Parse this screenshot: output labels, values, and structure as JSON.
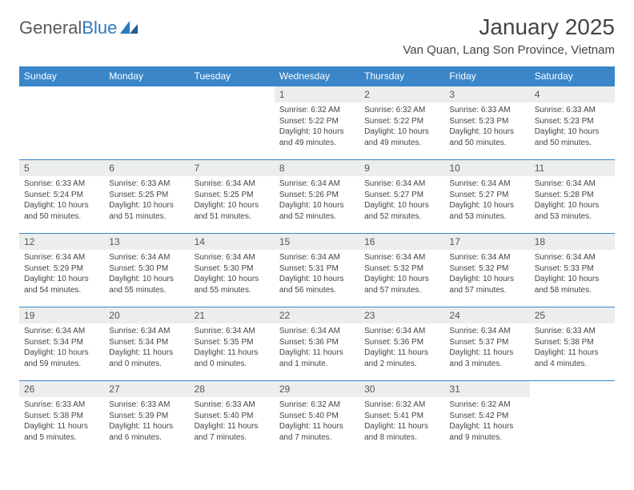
{
  "brand": {
    "part1": "General",
    "part2": "Blue"
  },
  "title": "January 2025",
  "location": "Van Quan, Lang Son Province, Vietnam",
  "colors": {
    "header_bg": "#3a86c8",
    "header_text": "#ffffff",
    "daynum_bg": "#eceded",
    "border": "#3a86c8",
    "text": "#444444",
    "brand_gray": "#5a5a5a",
    "brand_blue": "#2b7bbf"
  },
  "weekdays": [
    "Sunday",
    "Monday",
    "Tuesday",
    "Wednesday",
    "Thursday",
    "Friday",
    "Saturday"
  ],
  "weeks": [
    [
      null,
      null,
      null,
      {
        "n": "1",
        "sr": "6:32 AM",
        "ss": "5:22 PM",
        "dl": "10 hours and 49 minutes."
      },
      {
        "n": "2",
        "sr": "6:32 AM",
        "ss": "5:22 PM",
        "dl": "10 hours and 49 minutes."
      },
      {
        "n": "3",
        "sr": "6:33 AM",
        "ss": "5:23 PM",
        "dl": "10 hours and 50 minutes."
      },
      {
        "n": "4",
        "sr": "6:33 AM",
        "ss": "5:23 PM",
        "dl": "10 hours and 50 minutes."
      }
    ],
    [
      {
        "n": "5",
        "sr": "6:33 AM",
        "ss": "5:24 PM",
        "dl": "10 hours and 50 minutes."
      },
      {
        "n": "6",
        "sr": "6:33 AM",
        "ss": "5:25 PM",
        "dl": "10 hours and 51 minutes."
      },
      {
        "n": "7",
        "sr": "6:34 AM",
        "ss": "5:25 PM",
        "dl": "10 hours and 51 minutes."
      },
      {
        "n": "8",
        "sr": "6:34 AM",
        "ss": "5:26 PM",
        "dl": "10 hours and 52 minutes."
      },
      {
        "n": "9",
        "sr": "6:34 AM",
        "ss": "5:27 PM",
        "dl": "10 hours and 52 minutes."
      },
      {
        "n": "10",
        "sr": "6:34 AM",
        "ss": "5:27 PM",
        "dl": "10 hours and 53 minutes."
      },
      {
        "n": "11",
        "sr": "6:34 AM",
        "ss": "5:28 PM",
        "dl": "10 hours and 53 minutes."
      }
    ],
    [
      {
        "n": "12",
        "sr": "6:34 AM",
        "ss": "5:29 PM",
        "dl": "10 hours and 54 minutes."
      },
      {
        "n": "13",
        "sr": "6:34 AM",
        "ss": "5:30 PM",
        "dl": "10 hours and 55 minutes."
      },
      {
        "n": "14",
        "sr": "6:34 AM",
        "ss": "5:30 PM",
        "dl": "10 hours and 55 minutes."
      },
      {
        "n": "15",
        "sr": "6:34 AM",
        "ss": "5:31 PM",
        "dl": "10 hours and 56 minutes."
      },
      {
        "n": "16",
        "sr": "6:34 AM",
        "ss": "5:32 PM",
        "dl": "10 hours and 57 minutes."
      },
      {
        "n": "17",
        "sr": "6:34 AM",
        "ss": "5:32 PM",
        "dl": "10 hours and 57 minutes."
      },
      {
        "n": "18",
        "sr": "6:34 AM",
        "ss": "5:33 PM",
        "dl": "10 hours and 58 minutes."
      }
    ],
    [
      {
        "n": "19",
        "sr": "6:34 AM",
        "ss": "5:34 PM",
        "dl": "10 hours and 59 minutes."
      },
      {
        "n": "20",
        "sr": "6:34 AM",
        "ss": "5:34 PM",
        "dl": "11 hours and 0 minutes."
      },
      {
        "n": "21",
        "sr": "6:34 AM",
        "ss": "5:35 PM",
        "dl": "11 hours and 0 minutes."
      },
      {
        "n": "22",
        "sr": "6:34 AM",
        "ss": "5:36 PM",
        "dl": "11 hours and 1 minute."
      },
      {
        "n": "23",
        "sr": "6:34 AM",
        "ss": "5:36 PM",
        "dl": "11 hours and 2 minutes."
      },
      {
        "n": "24",
        "sr": "6:34 AM",
        "ss": "5:37 PM",
        "dl": "11 hours and 3 minutes."
      },
      {
        "n": "25",
        "sr": "6:33 AM",
        "ss": "5:38 PM",
        "dl": "11 hours and 4 minutes."
      }
    ],
    [
      {
        "n": "26",
        "sr": "6:33 AM",
        "ss": "5:38 PM",
        "dl": "11 hours and 5 minutes."
      },
      {
        "n": "27",
        "sr": "6:33 AM",
        "ss": "5:39 PM",
        "dl": "11 hours and 6 minutes."
      },
      {
        "n": "28",
        "sr": "6:33 AM",
        "ss": "5:40 PM",
        "dl": "11 hours and 7 minutes."
      },
      {
        "n": "29",
        "sr": "6:32 AM",
        "ss": "5:40 PM",
        "dl": "11 hours and 7 minutes."
      },
      {
        "n": "30",
        "sr": "6:32 AM",
        "ss": "5:41 PM",
        "dl": "11 hours and 8 minutes."
      },
      {
        "n": "31",
        "sr": "6:32 AM",
        "ss": "5:42 PM",
        "dl": "11 hours and 9 minutes."
      },
      null
    ]
  ],
  "labels": {
    "sunrise": "Sunrise:",
    "sunset": "Sunset:",
    "daylight": "Daylight:"
  }
}
